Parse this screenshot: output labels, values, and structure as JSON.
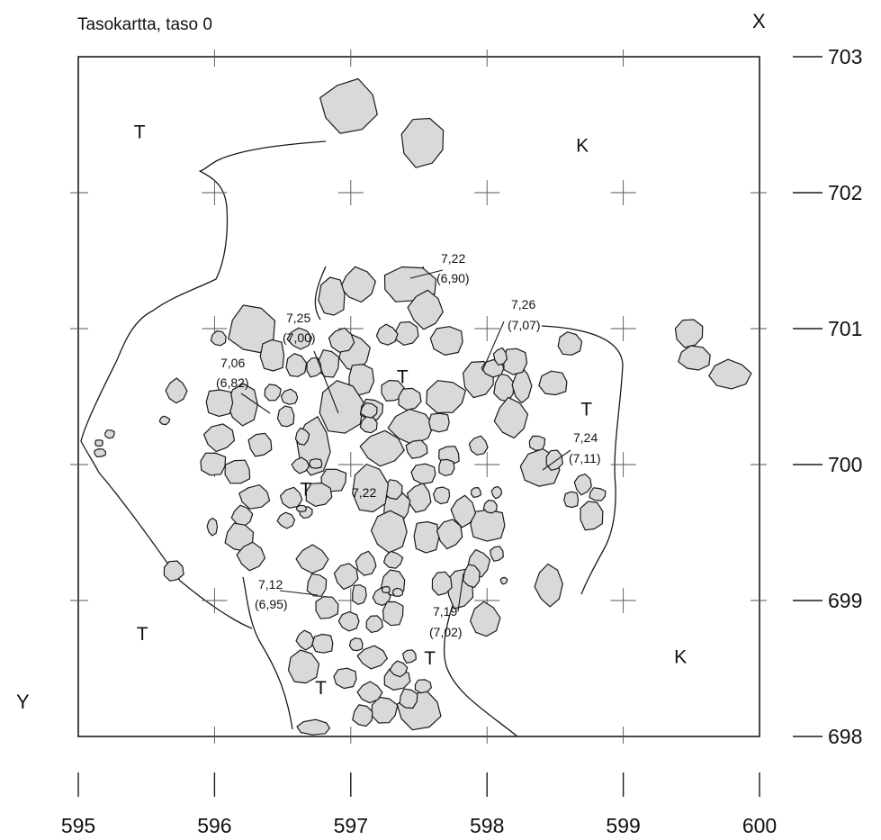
{
  "title": "Tasokartta, taso 0",
  "axis_names": {
    "x": "X",
    "y": "Y"
  },
  "x_ticks": [
    595,
    596,
    597,
    598,
    599,
    600
  ],
  "y_ticks": [
    703,
    702,
    701,
    700,
    699,
    698
  ],
  "zones": [
    {
      "label": "T",
      "x": 595.45,
      "y": 702.4
    },
    {
      "label": "K",
      "x": 598.7,
      "y": 702.3
    },
    {
      "label": "T",
      "x": 597.38,
      "y": 700.6
    },
    {
      "label": "T",
      "x": 598.73,
      "y": 700.36
    },
    {
      "label": "T",
      "x": 596.67,
      "y": 699.77
    },
    {
      "label": "T",
      "x": 595.47,
      "y": 698.71
    },
    {
      "label": "T",
      "x": 597.58,
      "y": 698.53
    },
    {
      "label": "T",
      "x": 596.78,
      "y": 698.31
    },
    {
      "label": "K",
      "x": 599.42,
      "y": 698.54
    }
  ],
  "elevations": [
    {
      "value": "7,22",
      "sub": "(6,90)"
    },
    {
      "value": "7,25",
      "sub": "(7,00)"
    },
    {
      "value": "7,26",
      "sub": "(7,07)"
    },
    {
      "value": "7,06",
      "sub": "(6,82)"
    },
    {
      "value": "7,24",
      "sub": "(7,11)"
    },
    {
      "value": "7,22",
      "sub": ""
    },
    {
      "value": "7,12",
      "sub": "(6,95)"
    },
    {
      "value": "7,19",
      "sub": "(7,02)"
    }
  ]
}
